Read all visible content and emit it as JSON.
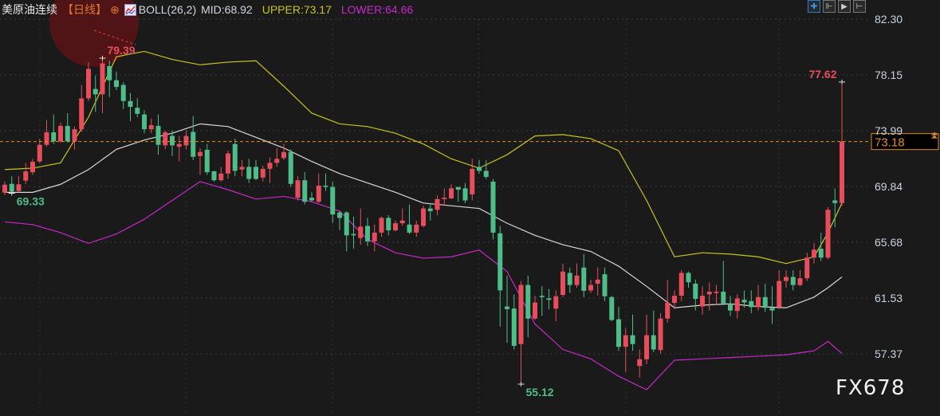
{
  "header": {
    "instrument": "美原油连续",
    "period": "【日线】",
    "plus_icon": "crosshair-circle-icon",
    "indicator_icon": "boll-chart-icon",
    "indicator": "BOLL(26,2)",
    "mid": "MID:68.92",
    "upper": "UPPER:73.17",
    "lower": "LOWER:64.66"
  },
  "toolbar": [
    {
      "icon": "crosshair-icon",
      "glyph": "✚",
      "active": true
    },
    {
      "icon": "zoom-left-icon",
      "glyph": "⊩"
    },
    {
      "icon": "play-icon",
      "glyph": "▶"
    },
    {
      "icon": "move-right-icon",
      "glyph": "⊢"
    }
  ],
  "watermark": "FX678",
  "colors": {
    "up": "#e84d5b",
    "down": "#4fbd8a",
    "mid": "#d8d8d8",
    "upper": "#c8c41c",
    "lower": "#c828c8",
    "last_price": "#e08a2a",
    "background": "#1a1a1a"
  },
  "chart_data": {
    "type": "candlestick",
    "title": "",
    "ylim": [
      55.0,
      82.6
    ],
    "y_ticks": [
      "82.30",
      "78.15",
      "73.99",
      "69.84",
      "65.68",
      "61.53",
      "57.37"
    ],
    "grid": true,
    "last_price": "73.18",
    "annotations": [
      {
        "text": "79.39",
        "index": 14,
        "value": 79.39,
        "kind": "high"
      },
      {
        "text": "69.33",
        "index": 1,
        "value": 69.33,
        "kind": "low"
      },
      {
        "text": "55.12",
        "index": 74,
        "value": 55.12,
        "kind": "low"
      },
      {
        "text": "77.62",
        "index": 120,
        "value": 77.62,
        "kind": "high"
      }
    ],
    "candles_ochl_note": "each row is [open, close, high, low]",
    "candles": [
      [
        69.38,
        69.97,
        70.2,
        69.2
      ],
      [
        70.03,
        69.48,
        70.6,
        69.33
      ],
      [
        69.5,
        70.0,
        70.6,
        69.4
      ],
      [
        70.27,
        70.96,
        71.6,
        70.0
      ],
      [
        70.9,
        71.68,
        71.9,
        70.7
      ],
      [
        71.7,
        72.94,
        73.4,
        71.6
      ],
      [
        72.94,
        73.87,
        74.8,
        72.8
      ],
      [
        73.87,
        73.2,
        75.2,
        73.0
      ],
      [
        73.2,
        74.35,
        74.6,
        73.1
      ],
      [
        74.35,
        73.2,
        75.3,
        73.1
      ],
      [
        73.2,
        74.1,
        74.3,
        72.6
      ],
      [
        74.1,
        76.4,
        77.4,
        73.9
      ],
      [
        76.4,
        78.6,
        79.1,
        76.2
      ],
      [
        77.1,
        76.7,
        78.1,
        75.4
      ],
      [
        76.7,
        79.0,
        79.39,
        75.3
      ],
      [
        78.8,
        77.75,
        79.2,
        76.5
      ],
      [
        77.75,
        77.25,
        78.4,
        77.0
      ],
      [
        77.4,
        76.2,
        77.6,
        75.6
      ],
      [
        76.2,
        75.77,
        76.8,
        74.7
      ],
      [
        75.7,
        75.25,
        76.4,
        75.0
      ],
      [
        75.2,
        74.1,
        75.5,
        73.8
      ],
      [
        74.1,
        74.4,
        74.9,
        73.8
      ],
      [
        74.35,
        72.94,
        75.2,
        72.2
      ],
      [
        72.9,
        73.87,
        74.0,
        72.6
      ],
      [
        73.6,
        72.9,
        74.0,
        72.1
      ],
      [
        72.8,
        73.0,
        73.6,
        71.7
      ],
      [
        72.9,
        73.6,
        74.0,
        72.6
      ],
      [
        73.9,
        72.05,
        75.1,
        71.8
      ],
      [
        72.1,
        72.4,
        72.7,
        70.7
      ],
      [
        72.57,
        70.9,
        73.0,
        70.7
      ],
      [
        70.97,
        70.3,
        71.0,
        70.2
      ],
      [
        70.3,
        70.8,
        71.3,
        70.2
      ],
      [
        70.8,
        72.3,
        72.5,
        70.4
      ],
      [
        73.0,
        71.0,
        73.4,
        70.6
      ],
      [
        71.1,
        71.3,
        71.8,
        70.6
      ],
      [
        71.3,
        70.4,
        71.9,
        70.1
      ],
      [
        71.3,
        70.4,
        71.8,
        70.3
      ],
      [
        70.5,
        71.15,
        71.4,
        70.2
      ],
      [
        71.15,
        71.6,
        72.0,
        70.1
      ],
      [
        71.6,
        71.9,
        72.7,
        71.3
      ],
      [
        71.95,
        72.4,
        73.0,
        71.8
      ],
      [
        72.4,
        70.03,
        72.6,
        69.8
      ],
      [
        69.0,
        70.3,
        70.6,
        68.8
      ],
      [
        70.3,
        68.7,
        70.9,
        68.5
      ],
      [
        69.0,
        68.8,
        69.4,
        68.7
      ],
      [
        68.7,
        69.9,
        70.8,
        68.6
      ],
      [
        69.9,
        69.8,
        70.8,
        69.5
      ],
      [
        69.8,
        67.75,
        70.2,
        67.1
      ],
      [
        67.9,
        67.5,
        68.0,
        66.6
      ],
      [
        67.9,
        66.2,
        68.0,
        65.0
      ],
      [
        66.3,
        66.2,
        67.6,
        65.2
      ],
      [
        66.0,
        66.85,
        68.2,
        65.5
      ],
      [
        66.9,
        65.75,
        67.5,
        65.4
      ],
      [
        65.75,
        66.4,
        67.0,
        65.0
      ],
      [
        66.4,
        67.5,
        67.6,
        66.1
      ],
      [
        67.5,
        66.57,
        67.7,
        66.2
      ],
      [
        66.57,
        67.1,
        67.3,
        66.5
      ],
      [
        67.1,
        67.3,
        68.2,
        66.9
      ],
      [
        67.0,
        66.4,
        68.5,
        66.3
      ],
      [
        66.4,
        67.0,
        67.3,
        66.1
      ],
      [
        66.9,
        68.2,
        68.4,
        66.8
      ],
      [
        68.2,
        68.0,
        68.6,
        67.3
      ],
      [
        68.1,
        68.9,
        69.2,
        67.7
      ],
      [
        68.9,
        69.0,
        69.7,
        68.4
      ],
      [
        68.95,
        69.7,
        70.0,
        68.9
      ],
      [
        69.8,
        69.6,
        69.8,
        68.7
      ],
      [
        69.7,
        68.8,
        70.1,
        68.6
      ],
      [
        69.25,
        71.15,
        71.9,
        68.8
      ],
      [
        71.3,
        71.0,
        71.8,
        70.8
      ],
      [
        71.0,
        70.55,
        71.8,
        70.4
      ],
      [
        70.2,
        66.4,
        70.4,
        65.9
      ],
      [
        66.35,
        62.1,
        66.9,
        59.4
      ],
      [
        60.9,
        60.7,
        63.2,
        58.2
      ],
      [
        60.75,
        57.97,
        61.8,
        57.7
      ],
      [
        58.1,
        62.5,
        62.8,
        55.12
      ],
      [
        62.5,
        60.0,
        63.2,
        58.6
      ],
      [
        60.0,
        61.2,
        61.7,
        59.9
      ],
      [
        61.7,
        61.6,
        62.4,
        60.2
      ],
      [
        61.5,
        61.4,
        62.2,
        60.7
      ],
      [
        60.74,
        61.66,
        62.1,
        59.8
      ],
      [
        61.76,
        63.5,
        64.1,
        61.6
      ],
      [
        63.4,
        62.5,
        63.8,
        61.9
      ],
      [
        62.5,
        63.2,
        64.1,
        62.3
      ],
      [
        63.8,
        62.07,
        64.8,
        61.6
      ],
      [
        62.1,
        62.5,
        62.9,
        61.9
      ],
      [
        62.6,
        62.9,
        63.8,
        61.7
      ],
      [
        63.3,
        61.66,
        63.8,
        61.3
      ],
      [
        61.6,
        59.9,
        61.7,
        59.8
      ],
      [
        59.95,
        57.9,
        60.9,
        57.6
      ],
      [
        57.9,
        58.76,
        59.3,
        56.0
      ],
      [
        58.76,
        58.1,
        60.3,
        57.6
      ],
      [
        56.47,
        56.97,
        57.7,
        55.6
      ],
      [
        56.97,
        58.76,
        60.3,
        56.6
      ],
      [
        58.76,
        57.7,
        60.6,
        57.5
      ],
      [
        57.65,
        60.0,
        60.4,
        57.4
      ],
      [
        60.0,
        61.17,
        62.9,
        59.7
      ],
      [
        61.17,
        61.7,
        62.1,
        60.7
      ],
      [
        61.7,
        63.4,
        63.6,
        61.3
      ],
      [
        63.4,
        62.7,
        63.5,
        62.3
      ],
      [
        62.6,
        61.47,
        62.9,
        60.6
      ],
      [
        60.9,
        61.7,
        62.4,
        60.3
      ],
      [
        61.8,
        62.0,
        62.7,
        60.6
      ],
      [
        61.9,
        62.0,
        62.5,
        61.0
      ],
      [
        62.0,
        61.13,
        64.3,
        61.0
      ],
      [
        61.1,
        60.6,
        61.7,
        60.2
      ],
      [
        60.57,
        61.5,
        61.8,
        60.0
      ],
      [
        61.4,
        61.2,
        62.1,
        60.8
      ],
      [
        61.3,
        60.85,
        62.1,
        60.4
      ],
      [
        60.85,
        61.6,
        62.5,
        60.6
      ],
      [
        61.6,
        60.8,
        62.6,
        60.5
      ],
      [
        60.8,
        60.6,
        62.4,
        59.6
      ],
      [
        60.85,
        62.8,
        63.6,
        60.7
      ],
      [
        62.8,
        63.1,
        63.6,
        62.3
      ],
      [
        63.1,
        62.5,
        63.6,
        62.1
      ],
      [
        62.5,
        63.0,
        63.6,
        62.4
      ],
      [
        63.0,
        64.54,
        64.9,
        62.8
      ],
      [
        64.54,
        65.13,
        65.6,
        64.1
      ],
      [
        65.2,
        64.54,
        66.4,
        64.3
      ],
      [
        64.54,
        68.1,
        68.3,
        64.4
      ],
      [
        68.8,
        68.6,
        69.7,
        66.8
      ],
      [
        68.6,
        73.18,
        77.62,
        68.4
      ]
    ],
    "boll": {
      "index": [
        0,
        4,
        8,
        12,
        16,
        20,
        24,
        28,
        32,
        36,
        40,
        44,
        48,
        52,
        56,
        60,
        64,
        68,
        72,
        76,
        80,
        84,
        88,
        92,
        96,
        100,
        104,
        108,
        112,
        116,
        118,
        120
      ],
      "upper": [
        71.1,
        71.2,
        71.6,
        75.0,
        79.5,
        79.9,
        79.3,
        78.9,
        79.1,
        79.2,
        77.3,
        75.3,
        74.5,
        74.3,
        73.8,
        73.0,
        71.9,
        71.2,
        72.2,
        73.6,
        73.7,
        73.4,
        72.5,
        68.8,
        64.6,
        64.9,
        64.8,
        64.6,
        64.1,
        64.6,
        66.4,
        68.6
      ],
      "mid": [
        69.4,
        69.4,
        70.0,
        71.1,
        72.6,
        73.3,
        73.8,
        74.5,
        74.3,
        73.5,
        72.7,
        71.7,
        70.8,
        70.1,
        69.4,
        68.6,
        68.4,
        68.2,
        67.1,
        66.2,
        65.5,
        65.0,
        63.9,
        62.4,
        60.8,
        61.0,
        61.1,
        60.9,
        60.8,
        61.6,
        62.3,
        63.1
      ],
      "lower": [
        67.2,
        67.0,
        66.4,
        65.6,
        66.3,
        67.4,
        68.8,
        70.2,
        69.6,
        68.9,
        69.1,
        68.7,
        68.0,
        65.9,
        64.9,
        64.5,
        64.6,
        65.1,
        63.5,
        59.6,
        57.7,
        57.0,
        55.7,
        54.7,
        56.9,
        57.0,
        57.1,
        57.2,
        57.3,
        57.6,
        58.3,
        57.4
      ]
    }
  }
}
